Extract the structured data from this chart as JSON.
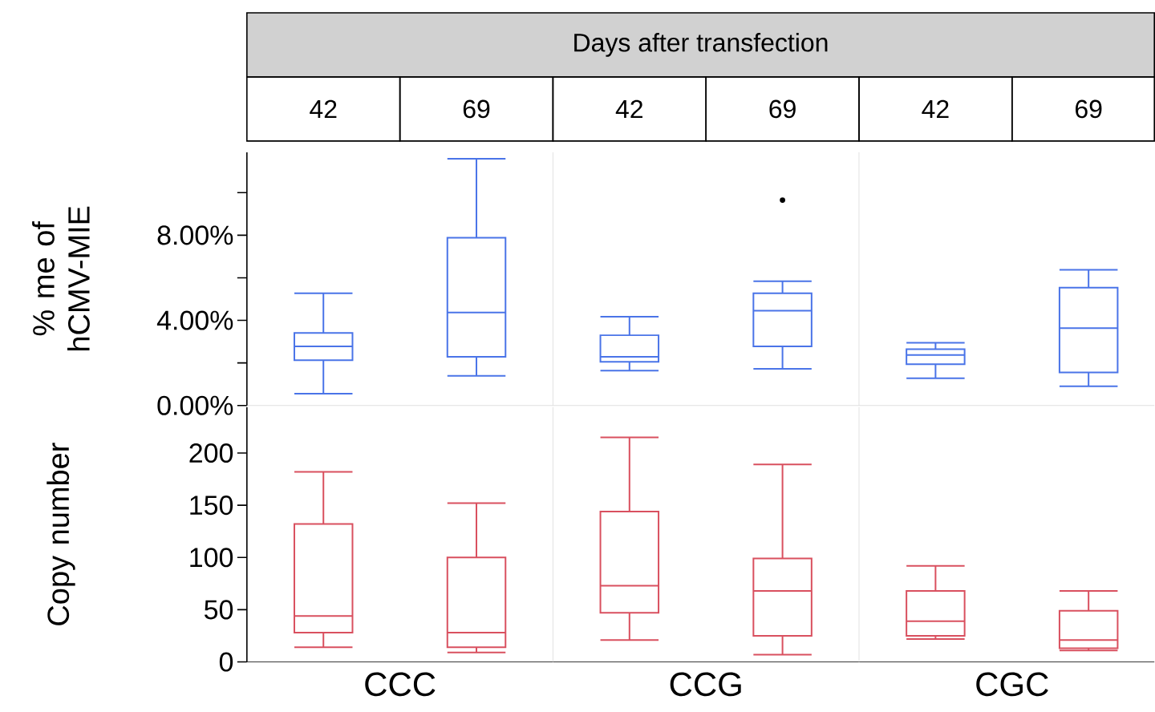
{
  "chart_data": [
    {
      "type": "box",
      "title": "Days after transfection",
      "ylabel": "% me of hCMV-MIE",
      "categories": [
        "42",
        "69",
        "42",
        "69",
        "42",
        "69"
      ],
      "ylim": [
        0,
        11.9
      ],
      "yticks": [
        {
          "value": 0,
          "label": "0.00%"
        },
        {
          "value": 2,
          "label": null
        },
        {
          "value": 4,
          "label": "4.00%"
        },
        {
          "value": 6,
          "label": null
        },
        {
          "value": 8,
          "label": "8.00%"
        },
        {
          "value": 10,
          "label": null
        }
      ],
      "series": [
        {
          "color": "#4a74e8",
          "boxes": [
            {
              "low": 0.55,
              "q1": 2.13,
              "median": 2.78,
              "q3": 3.41,
              "high": 5.27
            },
            {
              "low": 1.39,
              "q1": 2.29,
              "median": 4.37,
              "q3": 7.88,
              "high": 11.59
            },
            {
              "low": 1.64,
              "q1": 2.05,
              "median": 2.29,
              "q3": 3.3,
              "high": 4.17
            },
            {
              "low": 1.72,
              "q1": 2.78,
              "median": 4.45,
              "q3": 5.27,
              "high": 5.84,
              "outliers": [
                9.65
              ]
            },
            {
              "low": 1.28,
              "q1": 1.94,
              "median": 2.37,
              "q3": 2.65,
              "high": 2.95
            },
            {
              "low": 0.9,
              "q1": 1.55,
              "median": 3.63,
              "q3": 5.54,
              "high": 6.38
            }
          ]
        }
      ]
    },
    {
      "type": "box",
      "ylabel": "Copy number",
      "categories": [
        null,
        null,
        null,
        null,
        null,
        null
      ],
      "ylim": [
        0,
        244
      ],
      "yticks": [
        0,
        50,
        100,
        150,
        200
      ],
      "annotations": [
        "CCC",
        "CCG",
        "CGC"
      ],
      "series": [
        {
          "color": "#d9505f",
          "boxes": [
            {
              "low": 14,
              "q1": 28,
              "median": 44,
              "q3": 132,
              "high": 182
            },
            {
              "low": 9,
              "q1": 14,
              "median": 28,
              "q3": 100,
              "high": 152
            },
            {
              "low": 21,
              "q1": 47,
              "median": 73,
              "q3": 144,
              "high": 215
            },
            {
              "low": 7,
              "q1": 25,
              "median": 68,
              "q3": 99,
              "high": 189
            },
            {
              "low": 22,
              "q1": 25,
              "median": 39,
              "q3": 68,
              "high": 92
            },
            {
              "low": 11,
              "q1": 13,
              "median": 21,
              "q3": 49,
              "high": 68
            }
          ]
        }
      ]
    }
  ]
}
